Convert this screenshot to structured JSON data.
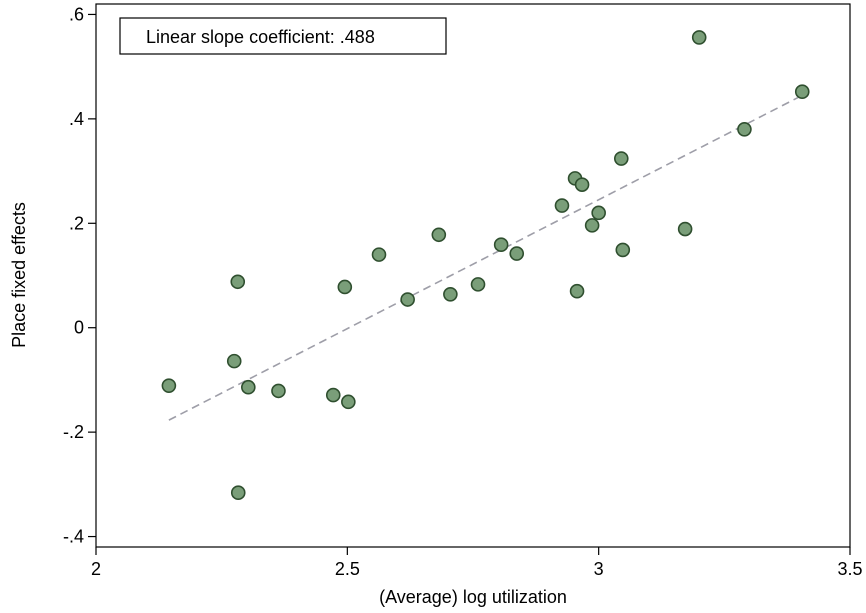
{
  "chart_data": {
    "type": "scatter",
    "title": "",
    "xlabel": "(Average) log utilization",
    "ylabel": "Place fixed effects",
    "xlim": [
      2,
      3.5
    ],
    "ylim": [
      -0.42,
      0.62
    ],
    "x_ticks": [
      2,
      2.5,
      3,
      3.5
    ],
    "x_tick_labels": [
      "2",
      "2.5",
      "3",
      "3.5"
    ],
    "y_ticks": [
      -0.4,
      -0.2,
      0,
      0.2,
      0.4,
      0.6
    ],
    "y_tick_labels": [
      "-.4",
      "-.2",
      "0",
      ".2",
      ".4",
      ".6"
    ],
    "grid": false,
    "annotation": "Linear slope coefficient: .488",
    "marker_fill": "#7a9e79",
    "marker_edge": "#2f4f2f",
    "fit_line_color": "#9e9ea8",
    "fit_line": {
      "x": [
        2.145,
        3.405
      ],
      "y": [
        -0.177,
        0.445
      ]
    },
    "points": [
      {
        "x": 2.145,
        "y": -0.111
      },
      {
        "x": 2.275,
        "y": -0.064
      },
      {
        "x": 2.282,
        "y": 0.088
      },
      {
        "x": 2.283,
        "y": -0.316
      },
      {
        "x": 2.303,
        "y": -0.114
      },
      {
        "x": 2.363,
        "y": -0.121
      },
      {
        "x": 2.472,
        "y": -0.129
      },
      {
        "x": 2.495,
        "y": 0.078
      },
      {
        "x": 2.502,
        "y": -0.142
      },
      {
        "x": 2.563,
        "y": 0.14
      },
      {
        "x": 2.62,
        "y": 0.054
      },
      {
        "x": 2.682,
        "y": 0.178
      },
      {
        "x": 2.705,
        "y": 0.064
      },
      {
        "x": 2.76,
        "y": 0.083
      },
      {
        "x": 2.806,
        "y": 0.159
      },
      {
        "x": 2.837,
        "y": 0.142
      },
      {
        "x": 2.927,
        "y": 0.234
      },
      {
        "x": 2.953,
        "y": 0.286
      },
      {
        "x": 2.957,
        "y": 0.07
      },
      {
        "x": 2.967,
        "y": 0.274
      },
      {
        "x": 2.987,
        "y": 0.196
      },
      {
        "x": 3.0,
        "y": 0.22
      },
      {
        "x": 3.045,
        "y": 0.324
      },
      {
        "x": 3.048,
        "y": 0.149
      },
      {
        "x": 3.172,
        "y": 0.189
      },
      {
        "x": 3.2,
        "y": 0.556
      },
      {
        "x": 3.29,
        "y": 0.38
      },
      {
        "x": 3.405,
        "y": 0.452
      }
    ]
  }
}
